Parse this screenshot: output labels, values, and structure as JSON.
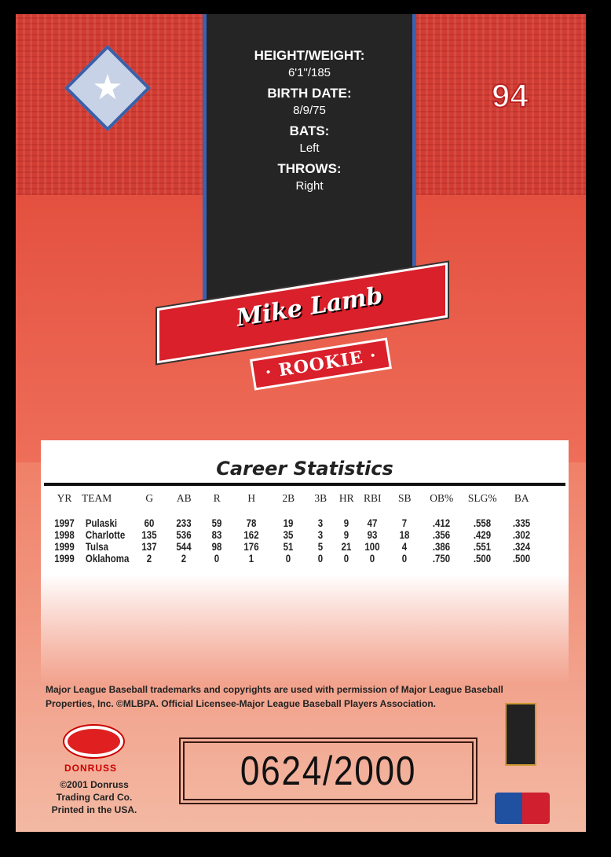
{
  "card": {
    "number": "94",
    "logo_icon": "team-star-logo"
  },
  "bio": {
    "items": [
      {
        "label": "HEIGHT/WEIGHT:",
        "value": "6'1\"/185"
      },
      {
        "label": "BIRTH DATE:",
        "value": "8/9/75"
      },
      {
        "label": "BATS:",
        "value": "Left"
      },
      {
        "label": "THROWS:",
        "value": "Right"
      }
    ]
  },
  "banner": {
    "name": "Mike Lamb",
    "tag": "· ROOKIE ·"
  },
  "stats": {
    "title": "Career Statistics",
    "headers": [
      "YR",
      "TEAM",
      "G",
      "AB",
      "R",
      "H",
      "2B",
      "3B",
      "HR",
      "RBI",
      "SB",
      "OB%",
      "SLG%",
      "BA"
    ],
    "rows": [
      [
        "1997",
        "Pulaski",
        "60",
        "233",
        "59",
        "78",
        "19",
        "3",
        "9",
        "47",
        "7",
        ".412",
        ".558",
        ".335"
      ],
      [
        "1998",
        "Charlotte",
        "135",
        "536",
        "83",
        "162",
        "35",
        "3",
        "9",
        "93",
        "18",
        ".356",
        ".429",
        ".302"
      ],
      [
        "1999",
        "Tulsa",
        "137",
        "544",
        "98",
        "176",
        "51",
        "5",
        "21",
        "100",
        "4",
        ".386",
        ".551",
        ".324"
      ],
      [
        "1999",
        "Oklahoma",
        "2",
        "2",
        "0",
        "1",
        "0",
        "0",
        "0",
        "0",
        "0",
        ".750",
        ".500",
        ".500"
      ]
    ]
  },
  "legal": "Major League Baseball trademarks and copyrights are used with permission of Major League Baseball Properties, Inc. ©MLBPA. Official Licensee-Major League Baseball Players Association.",
  "donruss": {
    "brand": "DONRUSS",
    "copyright": [
      "©2001 Donruss",
      "Trading Card Co.",
      "Printed in the USA."
    ]
  },
  "serial": "0624/2000",
  "colors": {
    "card_red": "#e0483c",
    "banner_red": "#d9202b",
    "panel": "#252525",
    "trim_blue": "#3a62b0"
  }
}
